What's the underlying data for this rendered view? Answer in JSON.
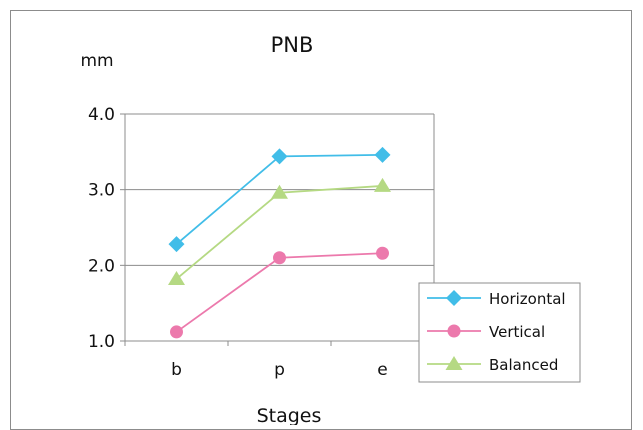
{
  "chart_data": {
    "type": "line",
    "title": "PNB",
    "unit_label": "mm",
    "xlabel": "Stages",
    "categories": [
      "b",
      "p",
      "e"
    ],
    "ylim": [
      1.0,
      4.0
    ],
    "yticks": [
      "1.0",
      "2.0",
      "3.0",
      "4.0"
    ],
    "grid": true,
    "legend_position": "bottom-right",
    "series": [
      {
        "name": "Horizontal",
        "values": [
          2.28,
          3.44,
          3.46
        ],
        "color": "#41bde8",
        "marker": "diamond"
      },
      {
        "name": "Vertical",
        "values": [
          1.12,
          2.1,
          2.16
        ],
        "color": "#ec79ac",
        "marker": "circle"
      },
      {
        "name": "Balanced",
        "values": [
          1.82,
          2.96,
          3.05
        ],
        "color": "#b5d983",
        "marker": "triangle"
      }
    ]
  }
}
